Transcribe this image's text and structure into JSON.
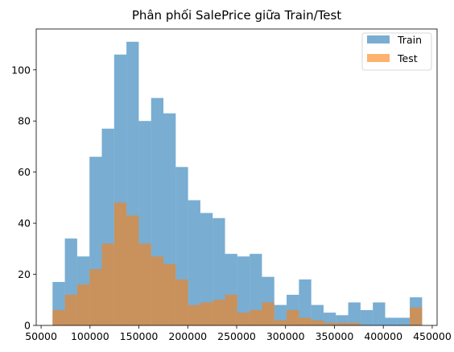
{
  "chart_data": {
    "type": "bar",
    "subtype": "histogram-overlay",
    "title": "Phân phối SalePrice giữa Train/Test",
    "xlabel": "",
    "ylabel": "",
    "xlim": [
      45000,
      455000
    ],
    "ylim": [
      0,
      116
    ],
    "grid": false,
    "legend_position": "top-right",
    "bin_start": 61691,
    "bin_width": 12600,
    "x_ticks": [
      50000,
      100000,
      150000,
      200000,
      250000,
      300000,
      350000,
      400000,
      450000
    ],
    "x_tick_labels": [
      "50000",
      "100000",
      "150000",
      "200000",
      "250000",
      "300000",
      "350000",
      "400000",
      "450000"
    ],
    "y_ticks": [
      0,
      20,
      40,
      60,
      80,
      100
    ],
    "y_tick_labels": [
      "0",
      "20",
      "40",
      "60",
      "80",
      "100"
    ],
    "series": [
      {
        "name": "Train",
        "color": "#1f77b4",
        "alpha": 0.6,
        "values": [
          17,
          34,
          27,
          66,
          77,
          106,
          111,
          80,
          89,
          83,
          62,
          49,
          44,
          42,
          28,
          27,
          28,
          19,
          8,
          12,
          18,
          8,
          5,
          4,
          9,
          6,
          9,
          3,
          3,
          11
        ]
      },
      {
        "name": "Test",
        "color": "#ff7f0e",
        "alpha": 0.6,
        "values": [
          6,
          12,
          16,
          22,
          32,
          48,
          43,
          32,
          27,
          24,
          18,
          8,
          9,
          10,
          12,
          5,
          6,
          9,
          2,
          6,
          3,
          2,
          1,
          1,
          1,
          0,
          0,
          0,
          0,
          7
        ]
      }
    ]
  }
}
